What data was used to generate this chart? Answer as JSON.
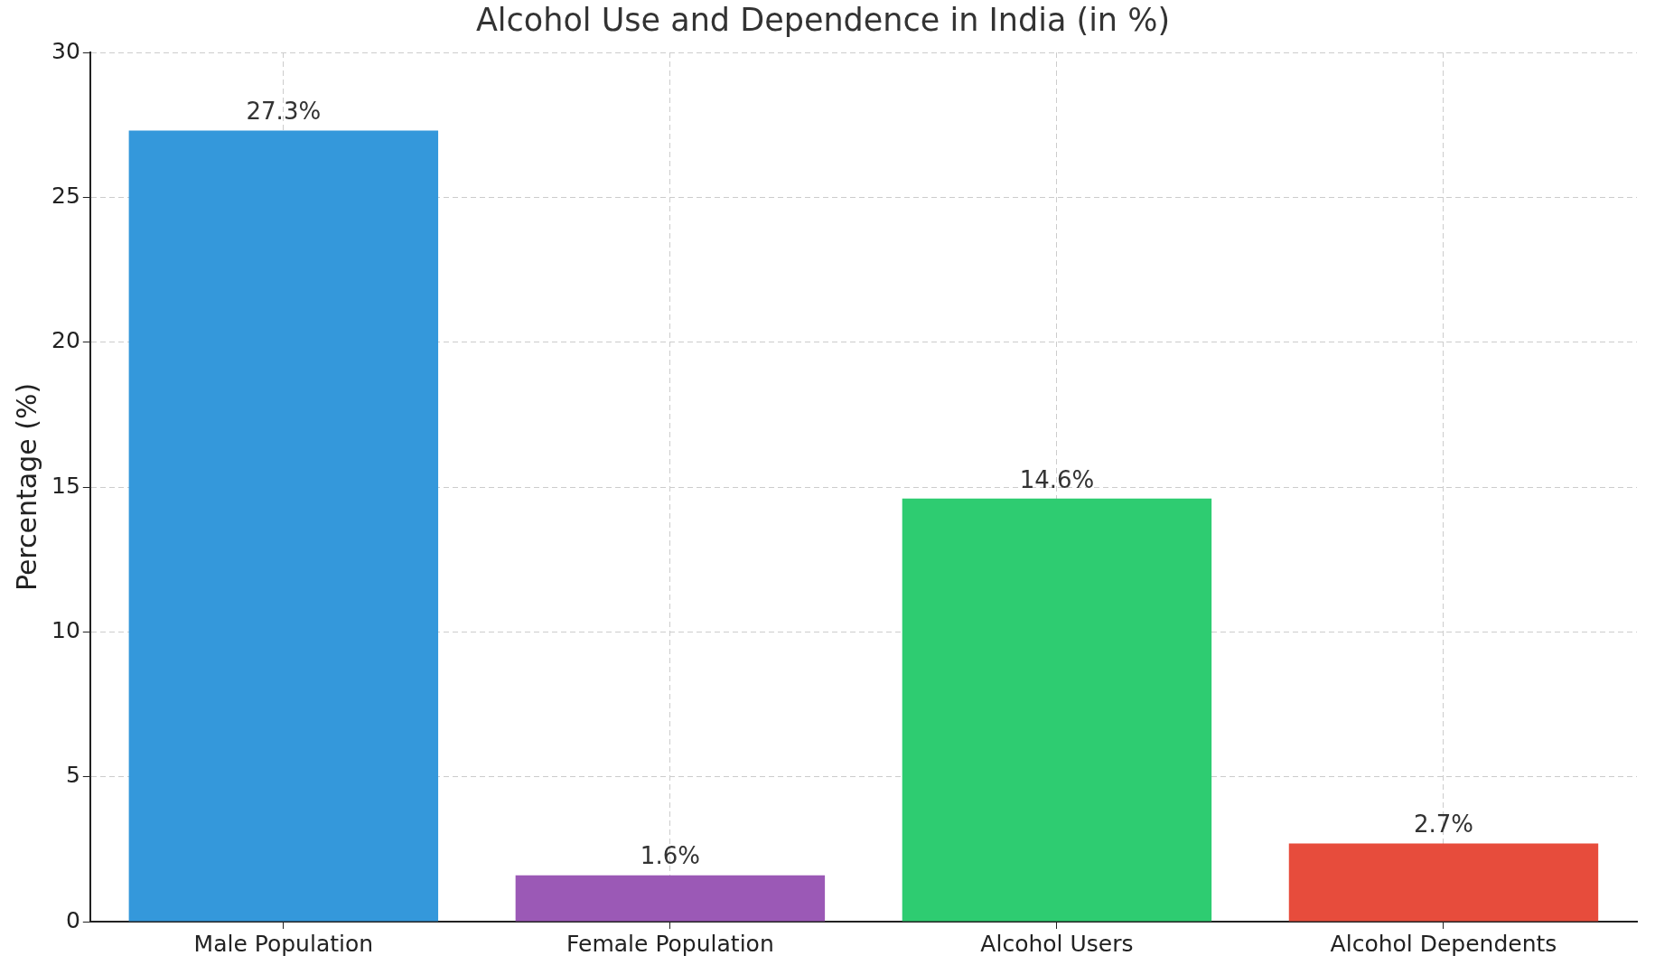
{
  "chart_data": {
    "type": "bar",
    "title": "Alcohol Use and Dependence in India (in %)",
    "ylabel": "Percentage (%)",
    "categories": [
      "Male Population",
      "Female Population",
      "Alcohol Users",
      "Alcohol Dependents"
    ],
    "values": [
      27.3,
      1.6,
      14.6,
      2.7
    ],
    "colors": [
      "#3498db",
      "#9b59b6",
      "#2ecc71",
      "#e74c3c"
    ],
    "value_labels": [
      "27.3%",
      "1.6%",
      "14.6%",
      "2.7%"
    ],
    "ylim": [
      0,
      30
    ],
    "yticks": [
      0,
      5,
      10,
      15,
      20,
      25,
      30
    ],
    "grid": true,
    "legend": false
  }
}
